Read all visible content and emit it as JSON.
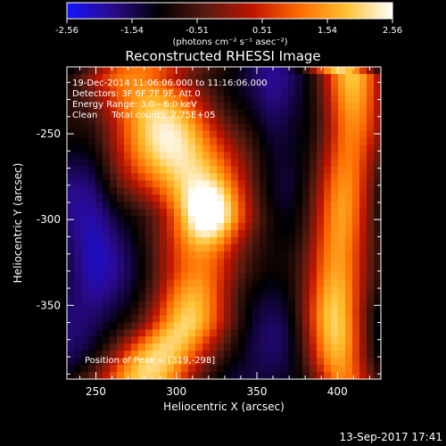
{
  "chart_data": {
    "type": "heatmap",
    "title": "Reconstructed RHESSI Image",
    "xlabel": "Heliocentric X (arcsec)",
    "ylabel": "Heliocentric Y (arcsec)",
    "xlim": [
      232,
      427
    ],
    "ylim": [
      -393,
      -211
    ],
    "x_ticks": [
      250,
      300,
      350,
      400
    ],
    "y_ticks": [
      -250,
      -300,
      -350
    ],
    "colorbar": {
      "min": -2.56,
      "max": 2.56,
      "ticks": [
        "-2.56",
        "-1.54",
        "-0.51",
        "0.51",
        "1.54",
        "2.56"
      ],
      "unit_label": "(photons cm⁻² s⁻¹ asec⁻²)",
      "colors": [
        "#1414ff",
        "#2a0a8a",
        "#000000",
        "#5a1a10",
        "#c01500",
        "#ff6a00",
        "#ffc030",
        "#ffffff"
      ]
    },
    "annotations": [
      "19-Dec-2014 11:06:06.000 to 11:16:06.000",
      "Detectors: 3F 6F 7F 9F, Att 0",
      "Energy Range: 3.0 - 6.0 keV",
      "Clean     Total counts: 2.75E+05"
    ],
    "peak": {
      "label": "Position of Peak = [319,-298]",
      "x": 319,
      "y": -298,
      "value": 2.56
    },
    "grid": false,
    "source_ridges": [
      {
        "x": [
          275,
          292,
          305,
          318,
          316,
          305,
          290,
          280
        ],
        "y": [
          -215,
          -245,
          -275,
          -298,
          -330,
          -360,
          -380,
          -393
        ],
        "peak": 2.3
      },
      {
        "x": [
          410,
          408,
          405,
          400,
          398,
          400,
          403
        ],
        "y": [
          -215,
          -250,
          -285,
          -320,
          -355,
          -380,
          -393
        ],
        "peak": 1.9
      }
    ],
    "background_level": -1.5
  },
  "footer": {
    "timestamp": "13-Sep-2017 17:41"
  }
}
